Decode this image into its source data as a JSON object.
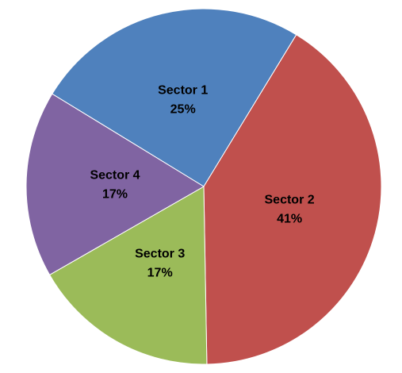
{
  "chart_data": {
    "type": "pie",
    "categories": [
      "Sector 1",
      "Sector 2",
      "Sector 3",
      "Sector 4"
    ],
    "values": [
      25,
      41,
      17,
      17
    ],
    "value_labels": [
      "25%",
      "41%",
      "17%",
      "17%"
    ],
    "colors": [
      "#4f81bd",
      "#c0504d",
      "#9bbb59",
      "#8064a2"
    ]
  }
}
